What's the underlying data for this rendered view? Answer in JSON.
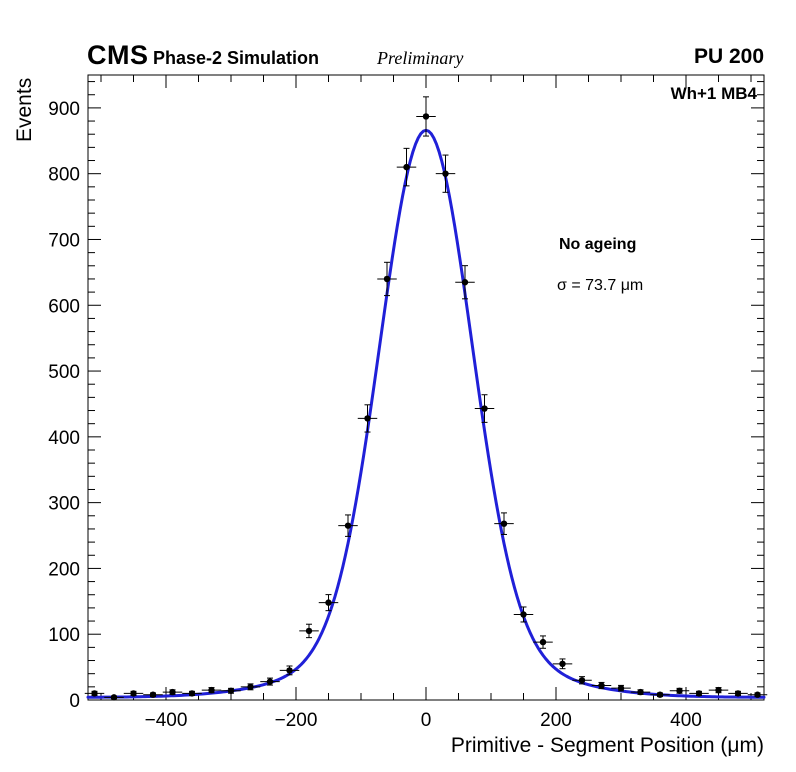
{
  "header": {
    "experiment": "CMS",
    "simulation_label": "Phase-2 Simulation",
    "preliminary_label": "Preliminary",
    "pileup_label": "PU 200"
  },
  "panel": {
    "region_label": "Wh+1 MB4",
    "legend_line1": "No ageing",
    "legend_line2": "σ = 73.7 μm"
  },
  "chart_data": {
    "type": "scatter",
    "title": "",
    "xlabel": "Primitive - Segment Position (μm)",
    "ylabel": "Events",
    "xlim": [
      -520,
      520
    ],
    "ylim": [
      0,
      950
    ],
    "grid": false,
    "legend_position": "upper-right-inside",
    "x_major_ticks": [
      -400,
      -200,
      0,
      200,
      400
    ],
    "x_tick_labels": [
      "−400",
      "−200",
      "0",
      "200",
      "400"
    ],
    "x_minor_step": 50,
    "y_major_ticks": [
      0,
      100,
      200,
      300,
      400,
      500,
      600,
      700,
      800,
      900
    ],
    "y_tick_labels": [
      "0",
      "100",
      "200",
      "300",
      "400",
      "500",
      "600",
      "700",
      "800",
      "900"
    ],
    "y_minor_step": 20,
    "marker_color": "#000000",
    "fit_color": "#2020d8",
    "points": {
      "x": [
        -510,
        -480,
        -450,
        -420,
        -390,
        -360,
        -330,
        -300,
        -270,
        -240,
        -210,
        -180,
        -150,
        -120,
        -90,
        -60,
        -30,
        0,
        30,
        60,
        90,
        120,
        150,
        180,
        210,
        240,
        270,
        300,
        330,
        360,
        390,
        420,
        450,
        480,
        510
      ],
      "y": [
        10,
        4,
        10,
        8,
        12,
        10,
        15,
        14,
        20,
        28,
        45,
        105,
        148,
        265,
        428,
        640,
        810,
        887,
        800,
        635,
        443,
        268,
        130,
        88,
        55,
        30,
        22,
        18,
        12,
        8,
        14,
        10,
        15,
        10,
        8
      ],
      "yerr": [
        3.2,
        2.0,
        3.2,
        2.8,
        3.5,
        3.2,
        3.9,
        3.7,
        4.5,
        5.3,
        6.7,
        10.2,
        12.2,
        16.3,
        20.7,
        25.3,
        28.5,
        29.8,
        28.3,
        25.2,
        21.0,
        16.4,
        11.4,
        9.4,
        7.4,
        5.5,
        4.7,
        4.2,
        3.5,
        2.8,
        3.7,
        3.2,
        3.9,
        3.2,
        2.8
      ],
      "xerr": 15
    },
    "fit": {
      "model": "core gaussian + tail gaussian + constant",
      "a1": 790,
      "sigma1": 70,
      "a2": 72,
      "sigma2": 150,
      "const": 4,
      "sigma_value_um": 73.7
    }
  }
}
